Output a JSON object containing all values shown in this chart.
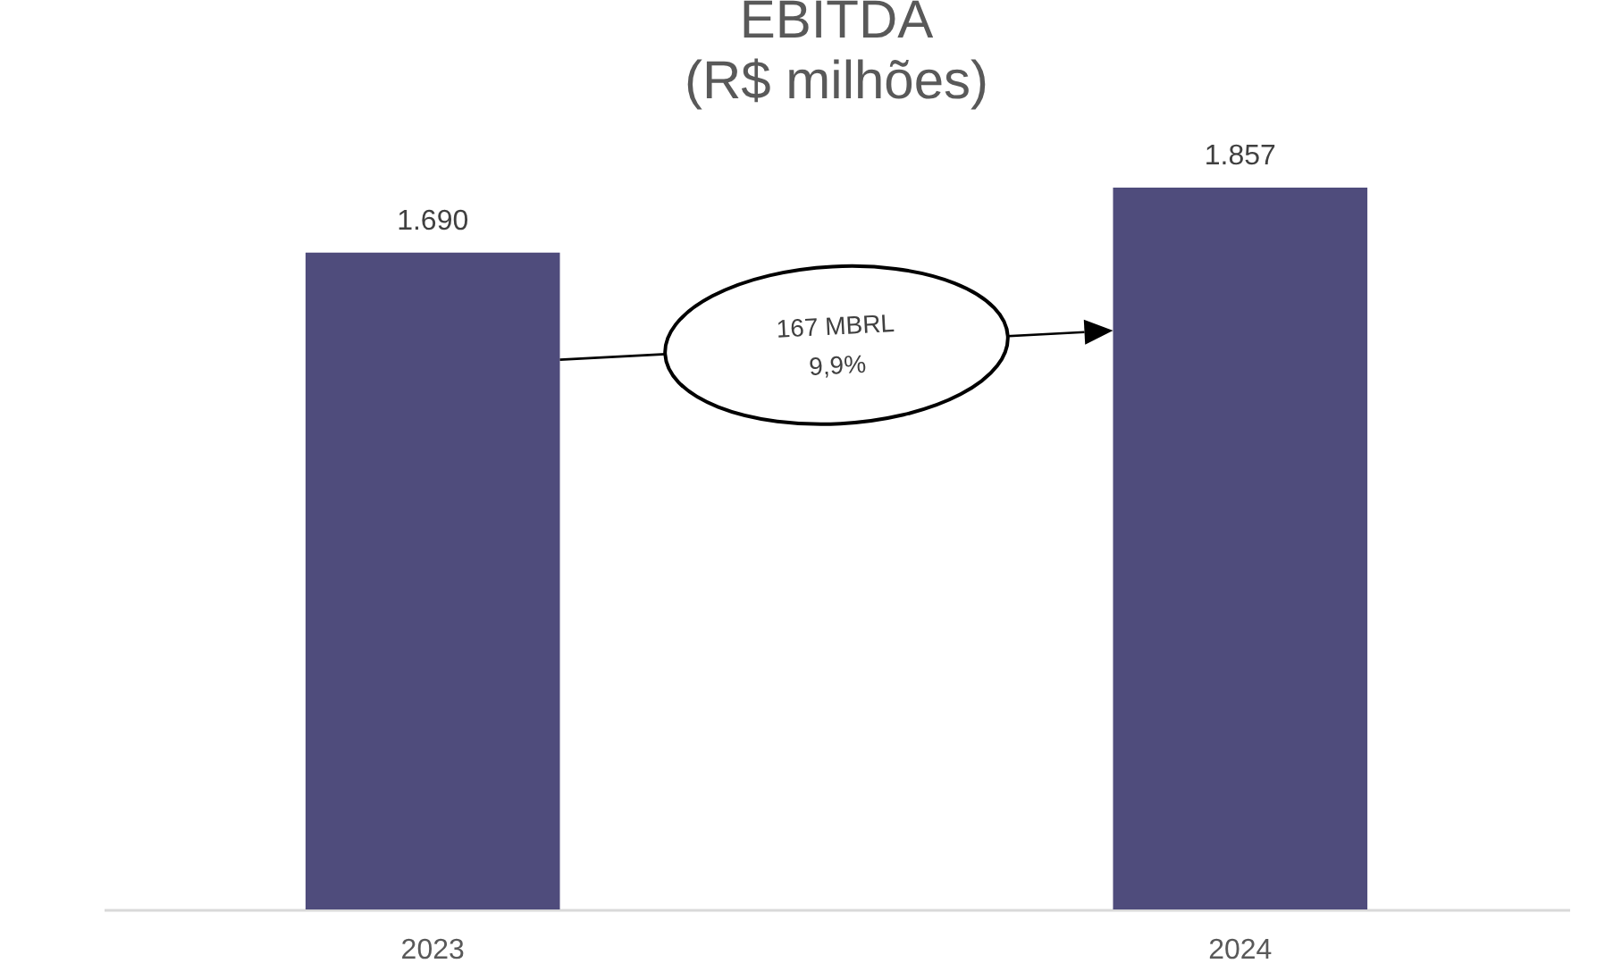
{
  "chart_data": {
    "type": "bar",
    "title": "EBITDA",
    "subtitle": "(R$ milhões)",
    "categories": [
      "2023",
      "2024"
    ],
    "values": [
      1690,
      1857
    ],
    "value_labels": [
      "1.690",
      "1.857"
    ],
    "color": "#4f4c7c",
    "annotations": [
      "167 MBRL\n9,9%"
    ],
    "grid": false
  }
}
